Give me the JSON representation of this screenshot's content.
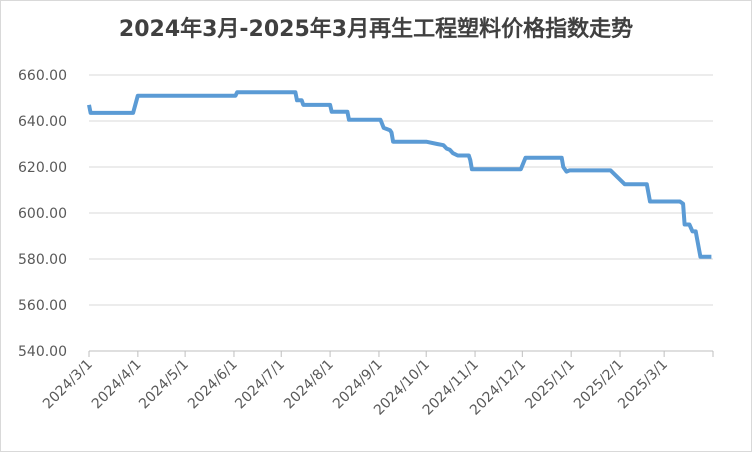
{
  "chart_data": {
    "type": "line",
    "title": "2024年3月-2025年3月再生工程塑料价格指数走势",
    "x": [
      "2024/3/1",
      "2024/3/2",
      "2024/3/29",
      "2024/4/1",
      "2024/6/2",
      "2024/6/3",
      "2024/7/10",
      "2024/7/11",
      "2024/7/14",
      "2024/7/15",
      "2024/8/1",
      "2024/8/2",
      "2024/8/12",
      "2024/8/13",
      "2024/9/2",
      "2024/9/4",
      "2024/9/8",
      "2024/9/9",
      "2024/9/10",
      "2024/10/1",
      "2024/10/8",
      "2024/10/12",
      "2024/10/14",
      "2024/10/16",
      "2024/10/18",
      "2024/10/21",
      "2024/10/28",
      "2024/10/29",
      "2024/10/30",
      "2024/11/30",
      "2024/12/3",
      "2024/12/26",
      "2024/12/27",
      "2024/12/29",
      "2024/12/31",
      "2025/1/26",
      "2025/2/4",
      "2025/2/18",
      "2025/2/20",
      "2025/3/11",
      "2025/3/13",
      "2025/3/14",
      "2025/3/17",
      "2025/3/19",
      "2025/3/21",
      "2025/3/24",
      "2025/3/31"
    ],
    "series": [
      {
        "name": "再生工程塑料价格指数",
        "color": "#5b9bd5",
        "values": [
          647,
          643.5,
          643.5,
          651,
          651,
          652.5,
          652.5,
          649,
          649,
          647,
          647,
          644,
          644,
          640.5,
          640.5,
          637,
          636,
          635,
          631,
          631,
          630,
          629.5,
          628,
          627.5,
          626,
          625,
          625,
          623,
          619,
          619,
          624,
          624,
          620,
          618,
          618.5,
          618.5,
          612.5,
          612.5,
          605,
          605,
          604,
          595,
          595,
          592,
          592,
          581,
          581
        ]
      }
    ],
    "xlim": [
      "2024/3/1",
      "2025/4/1"
    ],
    "xticks": [
      "2024/3/1",
      "2024/4/1",
      "2024/5/1",
      "2024/6/1",
      "2024/7/1",
      "2024/8/1",
      "2024/9/1",
      "2024/10/1",
      "2024/11/1",
      "2024/12/1",
      "2025/1/1",
      "2025/2/1",
      "2025/3/1"
    ],
    "ylim": [
      540,
      660
    ],
    "yticks": [
      {
        "value": 540,
        "label": "540.00"
      },
      {
        "value": 560,
        "label": "560.00"
      },
      {
        "value": 580,
        "label": "580.00"
      },
      {
        "value": 600,
        "label": "600.00"
      },
      {
        "value": 620,
        "label": "620.00"
      },
      {
        "value": 640,
        "label": "640.00"
      },
      {
        "value": 660,
        "label": "660.00"
      }
    ],
    "grid": true
  }
}
